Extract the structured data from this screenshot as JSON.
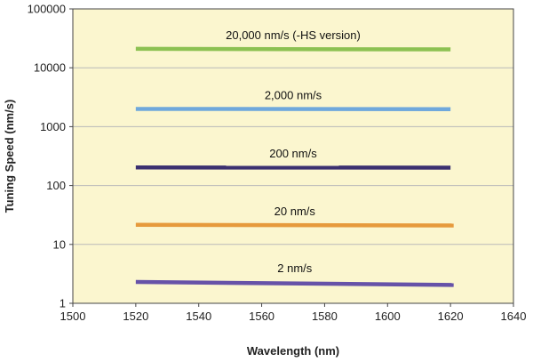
{
  "chart_data": {
    "type": "line",
    "xlabel": "Wavelength (nm)",
    "ylabel": "Tuning Speed (nm/s)",
    "xlim": [
      1500,
      1640
    ],
    "ylim": [
      1,
      100000
    ],
    "yscale": "log",
    "xticks": [
      "1500",
      "1520",
      "1540",
      "1560",
      "1580",
      "1600",
      "1620",
      "1640"
    ],
    "yticks": [
      "1",
      "10",
      "100",
      "1000",
      "10000",
      "100000"
    ],
    "grid": "horizontal",
    "plot_background": "#fbf6cf",
    "grid_color": "#b9b9b9",
    "series": [
      {
        "name": "20,000 nm/s (-HS version)",
        "x": [
          1520,
          1620
        ],
        "y": [
          21000,
          20500
        ],
        "color": "#8cc152"
      },
      {
        "name": "2,000 nm/s",
        "x": [
          1520,
          1620
        ],
        "y": [
          2000,
          1980
        ],
        "color": "#6fa8dc"
      },
      {
        "name": "200 nm/s",
        "x": [
          1520,
          1620
        ],
        "y": [
          203,
          201
        ],
        "color": "#3b3070"
      },
      {
        "name": "20 nm/s",
        "x": [
          1520,
          1621
        ],
        "y": [
          21.5,
          21
        ],
        "color": "#e69a3c"
      },
      {
        "name": "2 nm/s",
        "x": [
          1520,
          1621
        ],
        "y": [
          2.3,
          2.05
        ],
        "color": "#6652a8"
      }
    ]
  }
}
